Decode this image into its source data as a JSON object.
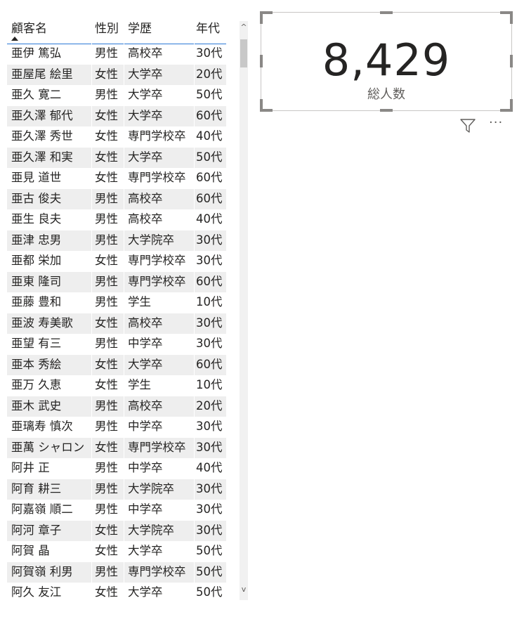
{
  "table": {
    "columns": [
      "顧客名",
      "性別",
      "学歴",
      "年代"
    ],
    "rows": [
      [
        "亜伊 篤弘",
        "男性",
        "高校卒",
        "30代"
      ],
      [
        "亜屋尾 絵里",
        "女性",
        "大学卒",
        "20代"
      ],
      [
        "亜久 寛二",
        "男性",
        "大学卒",
        "50代"
      ],
      [
        "亜久澤 郁代",
        "女性",
        "大学卒",
        "60代"
      ],
      [
        "亜久澤 秀世",
        "女性",
        "専門学校卒",
        "40代"
      ],
      [
        "亜久澤 和実",
        "女性",
        "大学卒",
        "50代"
      ],
      [
        "亜見 道世",
        "女性",
        "専門学校卒",
        "60代"
      ],
      [
        "亜古 俊夫",
        "男性",
        "高校卒",
        "60代"
      ],
      [
        "亜生 良夫",
        "男性",
        "高校卒",
        "40代"
      ],
      [
        "亜津 忠男",
        "男性",
        "大学院卒",
        "30代"
      ],
      [
        "亜都 栄加",
        "女性",
        "専門学校卒",
        "30代"
      ],
      [
        "亜東 隆司",
        "男性",
        "専門学校卒",
        "60代"
      ],
      [
        "亜藤 豊和",
        "男性",
        "学生",
        "10代"
      ],
      [
        "亜波 寿美歌",
        "女性",
        "高校卒",
        "30代"
      ],
      [
        "亜望 有三",
        "男性",
        "中学卒",
        "30代"
      ],
      [
        "亜本 秀絵",
        "女性",
        "大学卒",
        "60代"
      ],
      [
        "亜万 久恵",
        "女性",
        "学生",
        "10代"
      ],
      [
        "亜木 武史",
        "男性",
        "高校卒",
        "20代"
      ],
      [
        "亜璃寿 慎次",
        "男性",
        "中学卒",
        "30代"
      ],
      [
        "亜萬 シャロン",
        "女性",
        "専門学校卒",
        "30代"
      ],
      [
        "阿井 正",
        "男性",
        "中学卒",
        "40代"
      ],
      [
        "阿育 耕三",
        "男性",
        "大学院卒",
        "30代"
      ],
      [
        "阿嘉嶺 順二",
        "男性",
        "中学卒",
        "30代"
      ],
      [
        "阿河 章子",
        "女性",
        "大学院卒",
        "30代"
      ],
      [
        "阿賀 晶",
        "女性",
        "大学卒",
        "50代"
      ],
      [
        "阿賀嶺 利男",
        "男性",
        "専門学校卒",
        "50代"
      ],
      [
        "阿久 友江",
        "女性",
        "大学卒",
        "50代"
      ]
    ]
  },
  "scrollbar": {
    "up_icon": "chevron-up",
    "down_icon": "chevron-down"
  },
  "card": {
    "value": "8,429",
    "label": "総人数"
  },
  "card_toolbar": {
    "filter_icon": "filter-icon",
    "more_icon": "more-options-icon",
    "more_glyph": "···"
  },
  "colors": {
    "header_underline": "#2b79d6",
    "alt_row": "#eeeeee",
    "text": "#252423"
  }
}
